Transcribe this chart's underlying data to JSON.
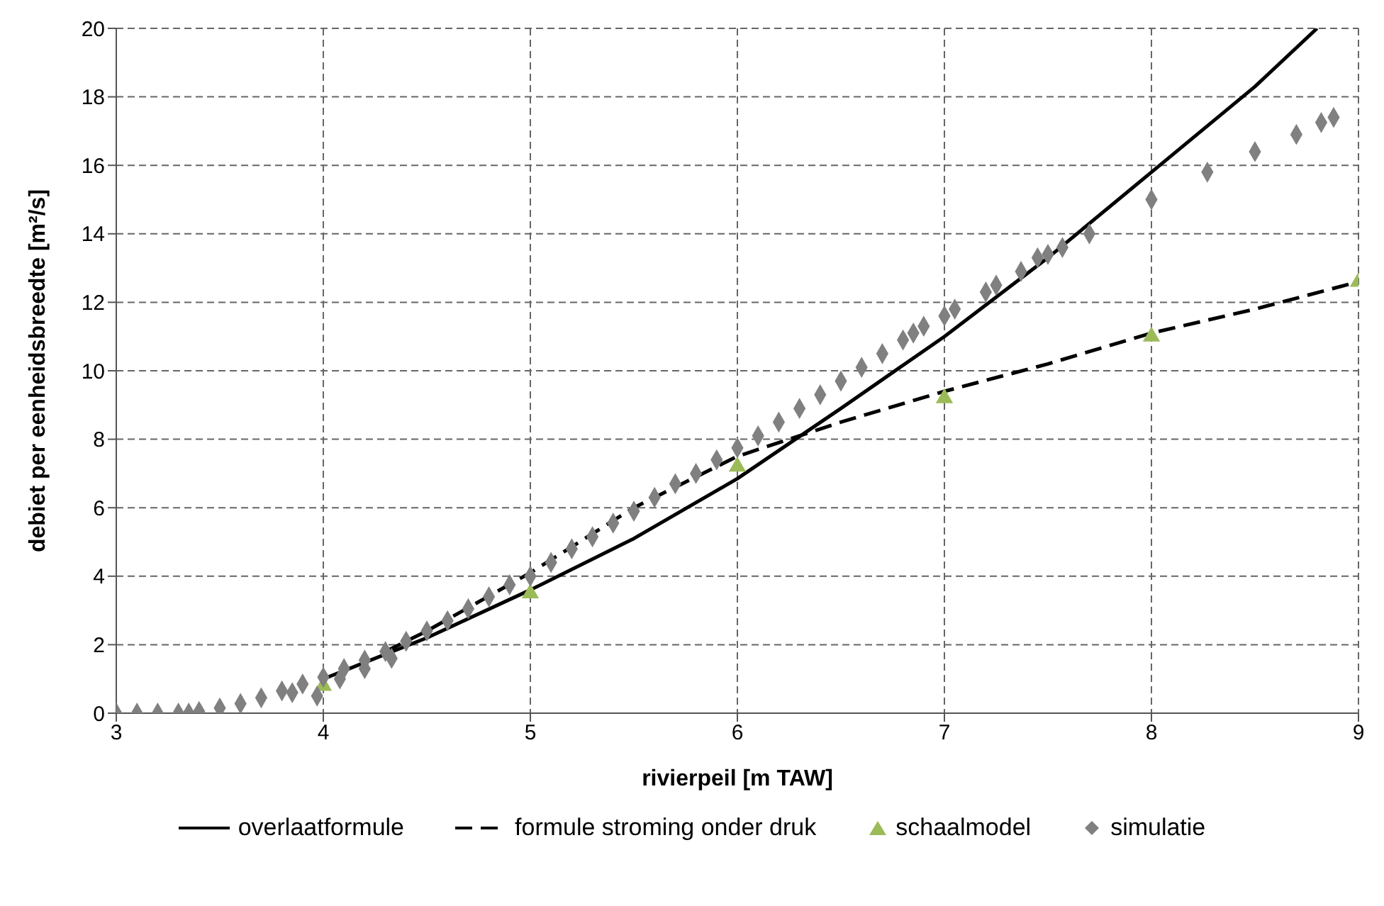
{
  "chart_data": {
    "type": "line",
    "xlabel": "rivierpeil [m TAW]",
    "ylabel": "debiet per eenheidsbreedte [m²/s]",
    "xlim": [
      3,
      9
    ],
    "ylim": [
      0,
      20
    ],
    "xticks": [
      3,
      4,
      5,
      6,
      7,
      8,
      9
    ],
    "yticks": [
      0,
      2,
      4,
      6,
      8,
      10,
      12,
      14,
      16,
      18,
      20
    ],
    "grid": true,
    "legend": "bottom",
    "series": [
      {
        "name": "overlaatformule",
        "color": "#000000",
        "line_style": "solid",
        "marker": "none",
        "x": [
          4.0,
          4.5,
          5.0,
          5.5,
          6.0,
          6.5,
          7.0,
          7.5,
          8.0,
          8.5,
          8.8
        ],
        "values": [
          1.0,
          2.2,
          3.6,
          5.1,
          6.85,
          8.9,
          11.0,
          13.3,
          15.8,
          18.3,
          20.0
        ]
      },
      {
        "name": "formule stroming onder druk",
        "color": "#000000",
        "line_style": "dashed",
        "marker": "none",
        "x": [
          4.3,
          4.5,
          5.0,
          5.5,
          6.0,
          6.5,
          7.0,
          7.5,
          8.0,
          8.5,
          9.0
        ],
        "values": [
          1.8,
          2.4,
          4.1,
          6.0,
          7.5,
          8.5,
          9.4,
          10.2,
          11.1,
          11.8,
          12.6
        ]
      },
      {
        "name": "schaalmodel",
        "type": "scatter",
        "color": "#9bbb59",
        "marker": "triangle",
        "x": [
          4,
          5,
          6,
          7,
          8,
          9
        ],
        "values": [
          0.8,
          3.5,
          7.2,
          9.2,
          11.0,
          12.6
        ]
      },
      {
        "name": "simulatie",
        "type": "scatter",
        "color": "#808080",
        "marker": "diamond",
        "x": [
          3.0,
          3.1,
          3.2,
          3.3,
          3.35,
          3.4,
          3.5,
          3.6,
          3.7,
          3.8,
          3.85,
          3.9,
          3.97,
          4.0,
          4.08,
          4.1,
          4.2,
          4.2,
          4.3,
          4.33,
          4.4,
          4.5,
          4.6,
          4.7,
          4.8,
          4.9,
          5.0,
          5.1,
          5.2,
          5.3,
          5.4,
          5.5,
          5.6,
          5.7,
          5.8,
          5.9,
          6.0,
          6.1,
          6.2,
          6.3,
          6.4,
          6.5,
          6.6,
          6.7,
          6.8,
          6.85,
          6.9,
          7.0,
          7.05,
          7.2,
          7.25,
          7.37,
          7.45,
          7.5,
          7.57,
          7.7,
          8.0,
          8.27,
          8.5,
          8.7,
          8.82,
          8.88
        ],
        "values": [
          0,
          0,
          0,
          0,
          0,
          0.05,
          0.15,
          0.28,
          0.45,
          0.65,
          0.6,
          0.85,
          0.5,
          1.05,
          1.0,
          1.3,
          1.55,
          1.3,
          1.8,
          1.6,
          2.1,
          2.4,
          2.7,
          3.05,
          3.4,
          3.75,
          4.0,
          4.4,
          4.8,
          5.15,
          5.55,
          5.9,
          6.3,
          6.7,
          7.0,
          7.4,
          7.75,
          8.1,
          8.5,
          8.9,
          9.3,
          9.7,
          10.1,
          10.5,
          10.9,
          11.1,
          11.3,
          11.6,
          11.8,
          12.3,
          12.5,
          12.9,
          13.3,
          13.4,
          13.6,
          14.0,
          15.0,
          15.8,
          16.4,
          16.9,
          17.25,
          17.4
        ]
      }
    ]
  }
}
